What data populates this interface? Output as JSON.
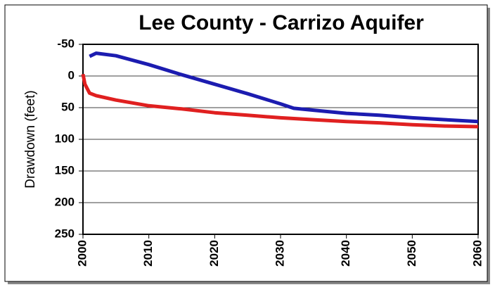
{
  "chart_data": {
    "type": "line",
    "title": "Lee County - Carrizo Aquifer",
    "y_label": "Drawdown (feet)",
    "xlim": [
      2000,
      2060
    ],
    "xticks": [
      2000,
      2010,
      2020,
      2030,
      2040,
      2050,
      2060
    ],
    "ylim": [
      -50,
      250
    ],
    "yticks": [
      -50,
      0,
      50,
      100,
      150,
      200,
      250
    ],
    "y_inverted": true,
    "grid": true,
    "series": [
      {
        "color": "#1c1cb0",
        "x": [
          2001,
          2002,
          2005,
          2010,
          2015,
          2020,
          2025,
          2030,
          2032,
          2035,
          2040,
          2045,
          2050,
          2055,
          2060
        ],
        "values": [
          -31,
          -36,
          -32,
          -18,
          -2,
          13,
          28,
          44,
          51,
          54,
          59,
          62,
          66,
          69,
          72
        ]
      },
      {
        "color": "#e02020",
        "x": [
          2000,
          2000.3,
          2001,
          2002,
          2005,
          2010,
          2015,
          2020,
          2025,
          2030,
          2035,
          2040,
          2045,
          2050,
          2055,
          2060
        ],
        "values": [
          -3,
          13,
          27,
          31,
          38,
          47,
          52,
          58,
          62,
          66,
          69,
          72,
          74,
          77,
          79,
          80
        ]
      }
    ]
  }
}
